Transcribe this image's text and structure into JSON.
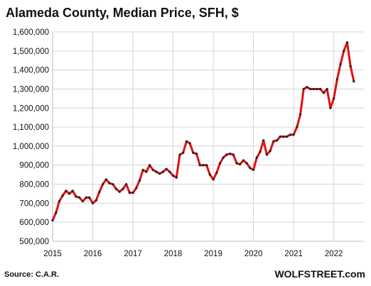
{
  "chart_data": {
    "type": "line",
    "title": "Alameda County, Median Price, SFH, $",
    "xlabel": "",
    "ylabel": "",
    "ylim": [
      500000,
      1600000
    ],
    "yticks": [
      500000,
      600000,
      700000,
      800000,
      900000,
      1000000,
      1100000,
      1200000,
      1300000,
      1400000,
      1500000,
      1600000
    ],
    "ytick_labels": [
      "500,000",
      "600,000",
      "700,000",
      "800,000",
      "900,000",
      "1,000,000",
      "1,100,000",
      "1,200,000",
      "1,300,000",
      "1,400,000",
      "1,500,000",
      "1,600,000"
    ],
    "xlim": [
      2015,
      2022.75
    ],
    "xticks": [
      2015,
      2016,
      2017,
      2018,
      2019,
      2020,
      2021,
      2022
    ],
    "xtick_labels": [
      "2015",
      "2016",
      "2017",
      "2018",
      "2019",
      "2020",
      "2021",
      "2022"
    ],
    "grid": true,
    "series": [
      {
        "line_color": "#e01010",
        "marker_color": "#222222",
        "x": [
          "2015-01",
          "2015-02",
          "2015-03",
          "2015-04",
          "2015-05",
          "2015-06",
          "2015-07",
          "2015-08",
          "2015-09",
          "2015-10",
          "2015-11",
          "2015-12",
          "2016-01",
          "2016-02",
          "2016-03",
          "2016-04",
          "2016-05",
          "2016-06",
          "2016-07",
          "2016-08",
          "2016-09",
          "2016-10",
          "2016-11",
          "2016-12",
          "2017-01",
          "2017-02",
          "2017-03",
          "2017-04",
          "2017-05",
          "2017-06",
          "2017-07",
          "2017-08",
          "2017-09",
          "2017-10",
          "2017-11",
          "2017-12",
          "2018-01",
          "2018-02",
          "2018-03",
          "2018-04",
          "2018-05",
          "2018-06",
          "2018-07",
          "2018-08",
          "2018-09",
          "2018-10",
          "2018-11",
          "2018-12",
          "2019-01",
          "2019-02",
          "2019-03",
          "2019-04",
          "2019-05",
          "2019-06",
          "2019-07",
          "2019-08",
          "2019-09",
          "2019-10",
          "2019-11",
          "2019-12",
          "2020-01",
          "2020-02",
          "2020-03",
          "2020-04",
          "2020-05",
          "2020-06",
          "2020-07",
          "2020-08",
          "2020-09",
          "2020-10",
          "2020-11",
          "2020-12",
          "2021-01",
          "2021-02",
          "2021-03",
          "2021-04",
          "2021-05",
          "2021-06",
          "2021-07",
          "2021-08",
          "2021-09",
          "2021-10",
          "2021-11",
          "2021-12",
          "2022-01",
          "2022-02",
          "2022-03",
          "2022-04",
          "2022-05",
          "2022-06",
          "2022-07"
        ],
        "values": [
          610000,
          650000,
          710000,
          740000,
          765000,
          750000,
          765000,
          735000,
          730000,
          710000,
          730000,
          730000,
          700000,
          715000,
          760000,
          800000,
          825000,
          805000,
          800000,
          775000,
          760000,
          775000,
          800000,
          755000,
          755000,
          780000,
          820000,
          875000,
          865000,
          900000,
          875000,
          865000,
          855000,
          865000,
          880000,
          865000,
          845000,
          835000,
          955000,
          965000,
          1025000,
          1015000,
          965000,
          960000,
          900000,
          900000,
          900000,
          850000,
          825000,
          860000,
          910000,
          940000,
          955000,
          960000,
          955000,
          910000,
          905000,
          925000,
          910000,
          885000,
          875000,
          940000,
          970000,
          1030000,
          955000,
          975000,
          1025000,
          1030000,
          1050000,
          1050000,
          1050000,
          1060000,
          1060000,
          1100000,
          1165000,
          1300000,
          1310000,
          1300000,
          1300000,
          1300000,
          1300000,
          1280000,
          1300000,
          1200000,
          1250000,
          1350000,
          1430000,
          1500000,
          1545000,
          1420000,
          1340000
        ]
      }
    ]
  },
  "source_text": "Source: C.A.R.",
  "brand_text": "WOLFSTREET.com"
}
